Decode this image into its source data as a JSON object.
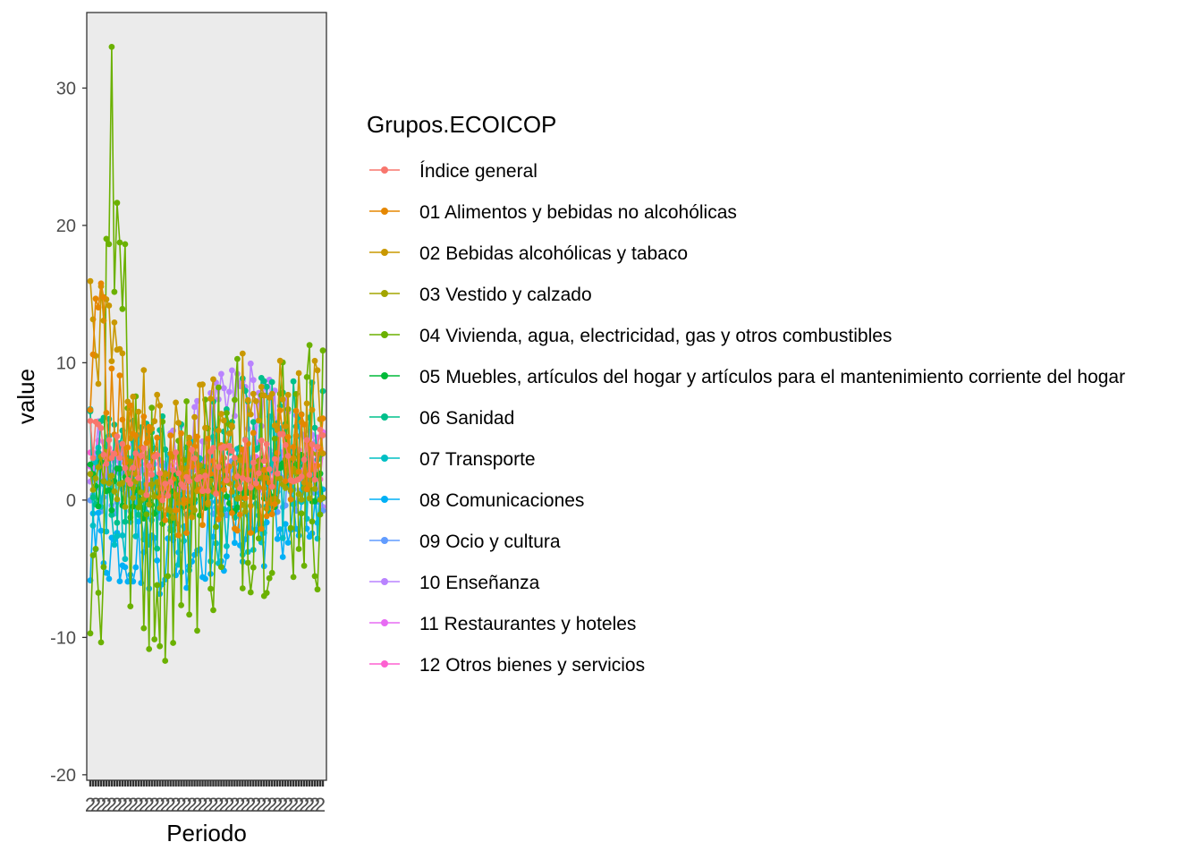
{
  "chart_data": {
    "type": "line",
    "xlabel": "Periodo",
    "ylabel": "value",
    "ylim": [
      -20.4,
      35.5
    ],
    "yticks": [
      -20,
      -10,
      0,
      10,
      20,
      30
    ],
    "ytick_labels": [
      "-20",
      "-10",
      "0",
      "10",
      "20",
      "30"
    ],
    "x_tick_labels_note": "2",
    "grid": false,
    "panel_background": "#ebebeb",
    "legend": {
      "title": "Grupos.ECOICOP",
      "placement": "right"
    },
    "n_periods": 88,
    "series": [
      {
        "name": "Índice general",
        "color": "#F8766D"
      },
      {
        "name": "01 Alimentos y bebidas no alcohólicas",
        "color": "#DE8C00"
      },
      {
        "name": "02 Bebidas alcohólicas y tabaco",
        "color": "#B79F00"
      },
      {
        "name": "03 Vestido y calzado",
        "color": "#7CAE00"
      },
      {
        "name": "04 Vivienda, agua, electricidad, gas y otros combustibles",
        "color": "#00BA38"
      },
      {
        "name": "05 Muebles, artículos del hogar y artículos para el mantenimiento corriente del hogar",
        "color": "#00C08B"
      },
      {
        "name": "06 Sanidad",
        "color": "#00BFC4"
      },
      {
        "name": "07 Transporte",
        "color": "#00B4F0"
      },
      {
        "name": "08 Comunicaciones",
        "color": "#619CFF"
      },
      {
        "name": "09 Ocio y cultura",
        "color": "#C77CFF"
      },
      {
        "name": "10 Enseñanza",
        "color": "#F564E3"
      },
      {
        "name": "11 Restaurantes y hoteles",
        "color": "#FF64B0"
      },
      {
        "name": "12 Otros bienes y servicios",
        "color": "#F8766D"
      }
    ]
  },
  "series_colors_actual": [
    "#F8766D",
    "#E58700",
    "#C99800",
    "#A3A500",
    "#6BB100",
    "#00BA38",
    "#00C08B",
    "#00BFC4",
    "#00B0F6",
    "#619CFF",
    "#B983FF",
    "#E76BF3",
    "#FD61D1"
  ]
}
